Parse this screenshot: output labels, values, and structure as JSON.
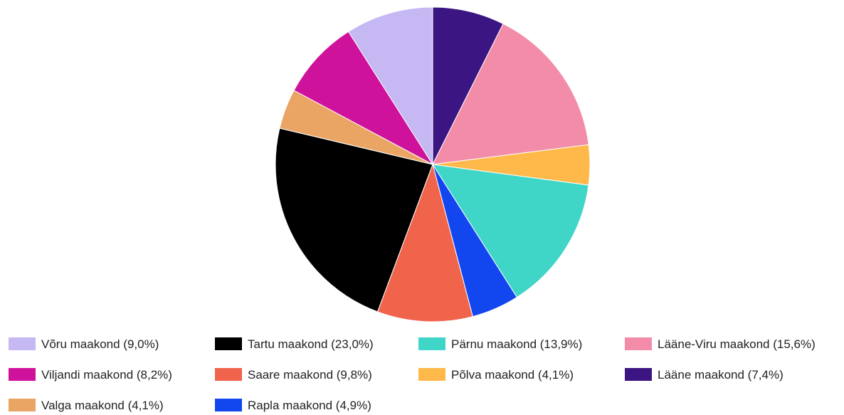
{
  "chart_data": {
    "type": "pie",
    "title": "",
    "slices": [
      {
        "label": "Lääne maakond",
        "legend_text": "Lääne maakond (7,4%)",
        "value": 7.4,
        "color": "#3b1682"
      },
      {
        "label": "Lääne-Viru maakond",
        "legend_text": "Lääne-Viru maakond (15,6%)",
        "value": 15.6,
        "color": "#f28ca8"
      },
      {
        "label": "Põlva maakond",
        "legend_text": "Põlva maakond (4,1%)",
        "value": 4.1,
        "color": "#ffb94a"
      },
      {
        "label": "Pärnu maakond",
        "legend_text": "Pärnu maakond (13,9%)",
        "value": 13.9,
        "color": "#3fd6c8"
      },
      {
        "label": "Rapla maakond",
        "legend_text": "Rapla maakond (4,9%)",
        "value": 4.9,
        "color": "#1247ef"
      },
      {
        "label": "Saare maakond",
        "legend_text": "Saare maakond (9,8%)",
        "value": 9.8,
        "color": "#f0644c"
      },
      {
        "label": "Tartu maakond",
        "legend_text": "Tartu maakond (23,0%)",
        "value": 23.0,
        "color": "#000000"
      },
      {
        "label": "Valga maakond",
        "legend_text": "Valga maakond (4,1%)",
        "value": 4.1,
        "color": "#eaa463"
      },
      {
        "label": "Viljandi maakond",
        "legend_text": "Viljandi maakond (8,2%)",
        "value": 8.2,
        "color": "#cf129b"
      },
      {
        "label": "Võru maakond",
        "legend_text": "Võru maakond (9,0%)",
        "value": 9.0,
        "color": "#c5b8f3"
      }
    ],
    "legend_position": "bottom",
    "legend_order": [
      "Võru maakond",
      "Tartu maakond",
      "Pärnu maakond",
      "Lääne-Viru maakond",
      "Viljandi maakond",
      "Saare maakond",
      "Põlva maakond",
      "Lääne maakond",
      "Valga maakond",
      "Rapla maakond"
    ]
  }
}
